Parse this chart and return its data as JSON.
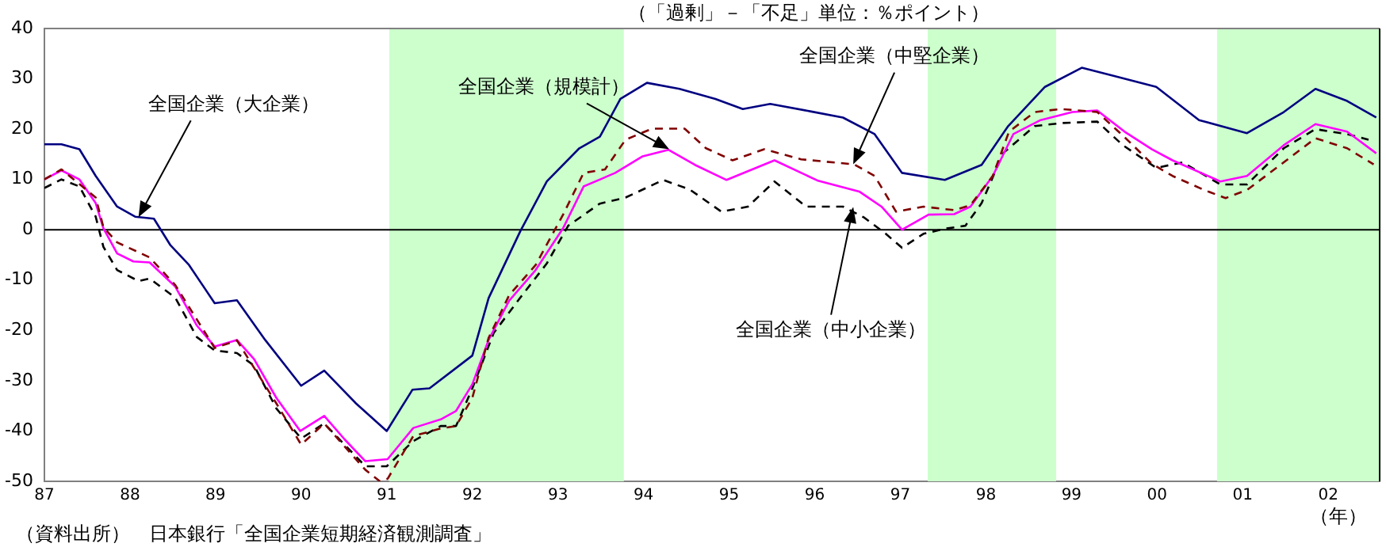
{
  "chart_data": {
    "type": "line",
    "subtitle": "（「過剰」－「不足」単位：％ポイント）",
    "xlabel": "（年）",
    "xlim": [
      1987,
      2002.6
    ],
    "ylim": [
      -50,
      40
    ],
    "xticks": [
      {
        "value": 1987,
        "label": "87"
      },
      {
        "value": 1988,
        "label": "88"
      },
      {
        "value": 1989,
        "label": "89"
      },
      {
        "value": 1990,
        "label": "90"
      },
      {
        "value": 1991,
        "label": "91"
      },
      {
        "value": 1992,
        "label": "92"
      },
      {
        "value": 1993,
        "label": "93"
      },
      {
        "value": 1994,
        "label": "94"
      },
      {
        "value": 1995,
        "label": "95"
      },
      {
        "value": 1996,
        "label": "96"
      },
      {
        "value": 1997,
        "label": "97"
      },
      {
        "value": 1998,
        "label": "98"
      },
      {
        "value": 1999,
        "label": "99"
      },
      {
        "value": 2000,
        "label": "00"
      },
      {
        "value": 2001,
        "label": "01"
      },
      {
        "value": 2002,
        "label": "02"
      }
    ],
    "yticks": [
      -50,
      -40,
      -30,
      -20,
      -10,
      0,
      10,
      20,
      30,
      40
    ],
    "grid": false,
    "legend": false,
    "marker": "none",
    "bands": [
      {
        "axis": "x",
        "from": 1991.03,
        "to": 1993.77,
        "color": "#ccffcc"
      },
      {
        "axis": "x",
        "from": 1997.32,
        "to": 1998.82,
        "color": "#ccffcc"
      },
      {
        "axis": "x",
        "from": 2000.7,
        "to": 2002.6,
        "color": "#ccffcc"
      }
    ],
    "ref_lines": [
      {
        "axis": "y",
        "value": 0,
        "color": "#000000"
      }
    ],
    "series": [
      {
        "color": "#000080",
        "line_style": "solid",
        "x": [
          1987,
          1987.2,
          1987.41,
          1987.6,
          1987.85,
          1988.06,
          1988.28,
          1988.47,
          1988.69,
          1988.99,
          1989.25,
          1989.58,
          1990,
          1990.27,
          1990.64,
          1991,
          1991.3,
          1991.5,
          1992,
          1992.19,
          1992.56,
          1992.87,
          1993.25,
          1993.49,
          1993.73,
          1994.04,
          1994.42,
          1994.84,
          1995.16,
          1995.48,
          1995.96,
          1996.33,
          1996.7,
          1997.02,
          1997.52,
          1997.95,
          1998.26,
          1998.69,
          1999.12,
          1999.49,
          1999.99,
          2000.49,
          2001.05,
          2001.48,
          2001.85,
          2002.22,
          2002.56
        ],
        "values": [
          17,
          17,
          16,
          10.7,
          4.6,
          2.6,
          2.2,
          -3,
          -7,
          -14.6,
          -14,
          -21.9,
          -31,
          -28,
          -34.5,
          -40,
          -31.8,
          -31.5,
          -25,
          -13.6,
          -0.3,
          9.6,
          16.2,
          18.5,
          26,
          29.2,
          28,
          26,
          24,
          25,
          23.5,
          22.3,
          19,
          11.3,
          9.9,
          12.9,
          20.6,
          28.4,
          32.2,
          30.6,
          28.4,
          21.8,
          19.2,
          23.4,
          28,
          25.6,
          22.3
        ]
      },
      {
        "color": "#800000",
        "line_style": "dashed",
        "x": [
          1987,
          1987.2,
          1987.6,
          1987.69,
          1987.85,
          1988.23,
          1988.53,
          1988.99,
          1989.25,
          1989.71,
          1990,
          1990.27,
          1990.75,
          1990.92,
          1991.01,
          1991.31,
          1991.63,
          1991.81,
          1992,
          1992.19,
          1992.43,
          1992.74,
          1993.06,
          1993.3,
          1993.55,
          1993.79,
          1994.1,
          1994.48,
          1994.73,
          1995.04,
          1995.41,
          1995.84,
          1996.46,
          1996.7,
          1996.95,
          1997.27,
          1997.63,
          1997.82,
          1998.08,
          1998.27,
          1998.57,
          1998.88,
          1999.3,
          1999.62,
          1999.94,
          2000.18,
          2000.55,
          2000.8,
          2001.05,
          2001.48,
          2001.85,
          2002.22,
          2002.53
        ],
        "values": [
          10,
          12,
          6.4,
          0.5,
          -2.5,
          -5.5,
          -11,
          -23.5,
          -22,
          -34.5,
          -42.7,
          -38.5,
          -47.7,
          -50,
          -49.5,
          -41,
          -39.5,
          -39,
          -33.4,
          -21.5,
          -13,
          -7,
          3,
          11.3,
          12,
          17.9,
          20.1,
          20.1,
          16.2,
          13.8,
          16,
          14,
          13,
          10.7,
          3.6,
          4.6,
          3.9,
          4.9,
          10.7,
          19.5,
          23.4,
          24,
          23.4,
          18.4,
          13.1,
          10.7,
          7.9,
          6.3,
          7.9,
          13.4,
          18.2,
          16.2,
          13
        ]
      },
      {
        "color": "#ff00ff",
        "line_style": "solid",
        "x": [
          1987,
          1987.2,
          1987.41,
          1987.6,
          1987.69,
          1987.85,
          1988.04,
          1988.23,
          1988.53,
          1988.78,
          1988.99,
          1989.25,
          1989.45,
          1989.71,
          1989.99,
          1990.27,
          1990.51,
          1990.75,
          1991.01,
          1991.31,
          1991.63,
          1991.81,
          1992,
          1992.19,
          1992.43,
          1992.74,
          1993.06,
          1993.3,
          1993.67,
          1993.99,
          1994.29,
          1994.6,
          1994.97,
          1995.53,
          1996.03,
          1996.52,
          1996.78,
          1997.02,
          1997.33,
          1997.63,
          1997.82,
          1998.08,
          1998.32,
          1998.64,
          1999.01,
          1999.3,
          1999.62,
          1999.94,
          2000.18,
          2000.74,
          2001.05,
          2001.48,
          2001.85,
          2002.22,
          2002.56
        ],
        "values": [
          10,
          11.8,
          10,
          5.3,
          0.3,
          -4.7,
          -6.3,
          -6.5,
          -11.3,
          -19,
          -23.2,
          -21.9,
          -25.7,
          -33.4,
          -40,
          -37,
          -41.7,
          -46,
          -45.6,
          -39.4,
          -37.7,
          -36,
          -30.7,
          -21.9,
          -14.1,
          -8,
          0.3,
          8.6,
          11.3,
          14.6,
          15.9,
          12.9,
          9.9,
          13.8,
          9.8,
          7.6,
          4.6,
          0,
          3,
          3.1,
          4.6,
          10.7,
          19,
          21.8,
          23.4,
          23.7,
          19.5,
          16,
          13.8,
          9.6,
          10.7,
          16.8,
          21,
          19.5,
          15.2
        ]
      },
      {
        "color": "#000000",
        "line_style": "dashed",
        "x": [
          1987,
          1987.2,
          1987.41,
          1987.6,
          1987.69,
          1987.85,
          1988.1,
          1988.23,
          1988.53,
          1988.78,
          1988.99,
          1989.25,
          1989.45,
          1989.71,
          1990,
          1990.27,
          1990.75,
          1991,
          1991.31,
          1991.63,
          1991.81,
          1992,
          1992.25,
          1992.56,
          1992.87,
          1993.12,
          1993.49,
          1993.79,
          1994.23,
          1994.54,
          1994.91,
          1995.22,
          1995.53,
          1995.9,
          1996.33,
          1996.58,
          1996.83,
          1997.02,
          1997.27,
          1997.52,
          1997.76,
          1997.95,
          1998.2,
          1998.57,
          1998.88,
          1999.3,
          1999.6,
          1999.99,
          2000.3,
          2000.74,
          2001.05,
          2001.48,
          2001.85,
          2002.22,
          2002.47
        ],
        "values": [
          8.3,
          10,
          8.6,
          2.6,
          -3.4,
          -8,
          -10.2,
          -9.7,
          -13.5,
          -21.3,
          -24,
          -24.5,
          -27,
          -35.5,
          -41.5,
          -38.5,
          -47,
          -47,
          -42,
          -39,
          -39,
          -31.5,
          -20.5,
          -13.5,
          -6.7,
          0.8,
          5.2,
          6.4,
          9.9,
          8,
          3.6,
          4.6,
          9.6,
          4.6,
          4.6,
          2.4,
          -0.8,
          -3.6,
          -0.8,
          0.2,
          0.8,
          5.3,
          15.2,
          20.6,
          21.2,
          21.5,
          16.8,
          12.3,
          13.4,
          9,
          9,
          16.2,
          20,
          19,
          17.9
        ]
      }
    ],
    "annotations": [
      {
        "text": "全国企業（大企業）",
        "x": 1988.1,
        "y": 2.5
      },
      {
        "text": "全国企業（規模計）",
        "x": 1994.3,
        "y": 16
      },
      {
        "text": "全国企業（中堅企業）",
        "x": 1996.45,
        "y": 13
      },
      {
        "text": "全国企業（中小企業）",
        "x": 1996.45,
        "y": 4.5
      },
      "（資料出所）　日本銀行「全国企業短期経済観測調査」"
    ]
  }
}
